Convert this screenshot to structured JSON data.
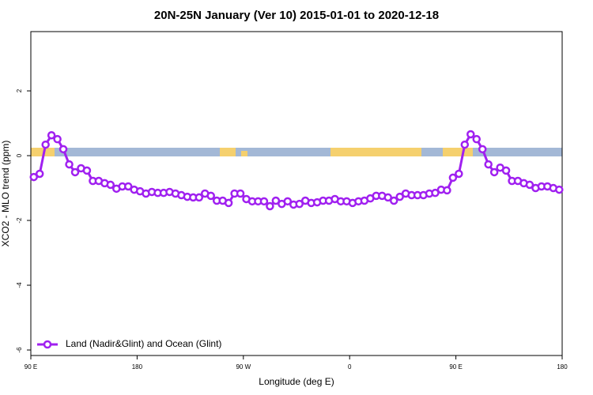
{
  "chart_data": {
    "type": "line",
    "title": "20N-25N January (Ver 10)   2015-01-01 to 2020-12-18",
    "xlabel": "Longitude (deg E)",
    "ylabel": "XCO2 - MLO trend (ppm)",
    "xlim": [
      90,
      540
    ],
    "xticks": [
      {
        "value": 90,
        "label": "90 E"
      },
      {
        "value": 180,
        "label": "180"
      },
      {
        "value": 270,
        "label": "90 W"
      },
      {
        "value": 360,
        "label": "0"
      },
      {
        "value": 450,
        "label": "90 E"
      },
      {
        "value": 540,
        "label": "180"
      }
    ],
    "ylim": [
      -6.17,
      3.83
    ],
    "yticks": [
      -6,
      -4,
      -2,
      0,
      2
    ],
    "legend": "bottom-left",
    "x": [
      92.5,
      97.5,
      102.5,
      107.5,
      112.5,
      117.5,
      122.5,
      127.5,
      132.5,
      137.5,
      142.5,
      147.5,
      152.5,
      157.5,
      162.5,
      167.5,
      172.5,
      177.5,
      182.5,
      187.5,
      192.5,
      197.5,
      202.5,
      207.5,
      212.5,
      217.5,
      222.5,
      227.5,
      232.5,
      237.5,
      242.5,
      247.5,
      252.5,
      257.5,
      262.5,
      267.5,
      272.5,
      277.5,
      282.5,
      287.5,
      292.5,
      297.5,
      302.5,
      307.5,
      312.5,
      317.5,
      322.5,
      327.5,
      332.5,
      337.5,
      342.5,
      347.5,
      352.5,
      357.5,
      362.5,
      367.5,
      372.5,
      377.5,
      382.5,
      387.5,
      392.5,
      397.5,
      402.5,
      407.5,
      412.5,
      417.5,
      422.5,
      427.5,
      432.5,
      437.5,
      442.5,
      447.5,
      452.5,
      457.5,
      462.5,
      467.5,
      472.5,
      477.5,
      482.5,
      487.5,
      492.5,
      497.5,
      502.5,
      507.5,
      512.5,
      517.5,
      522.5,
      527.5,
      532.5,
      537.5
    ],
    "series": [
      {
        "name": "Land (Nadir&Glint) and Ocean (Glint)",
        "color": "#a020f0",
        "values": [
          -0.66,
          -0.56,
          0.34,
          0.63,
          0.51,
          0.2,
          -0.27,
          -0.51,
          -0.39,
          -0.46,
          -0.78,
          -0.78,
          -0.85,
          -0.9,
          -1.02,
          -0.95,
          -0.95,
          -1.05,
          -1.1,
          -1.17,
          -1.12,
          -1.15,
          -1.15,
          -1.12,
          -1.17,
          -1.22,
          -1.27,
          -1.29,
          -1.29,
          -1.17,
          -1.24,
          -1.39,
          -1.39,
          -1.46,
          -1.17,
          -1.17,
          -1.34,
          -1.41,
          -1.41,
          -1.41,
          -1.56,
          -1.39,
          -1.49,
          -1.41,
          -1.51,
          -1.49,
          -1.39,
          -1.46,
          -1.44,
          -1.39,
          -1.39,
          -1.34,
          -1.41,
          -1.41,
          -1.46,
          -1.41,
          -1.39,
          -1.32,
          -1.24,
          -1.24,
          -1.29,
          -1.39,
          -1.27,
          -1.17,
          -1.22,
          -1.22,
          -1.22,
          -1.17,
          -1.15,
          -1.05,
          -1.07,
          -0.68,
          -0.56,
          0.34,
          0.66,
          0.51,
          0.2,
          -0.27,
          -0.51,
          -0.37,
          -0.46,
          -0.78,
          -0.78,
          -0.85,
          -0.9,
          -1.0,
          -0.95,
          -0.95,
          -1.0,
          -1.05
        ]
      }
    ]
  }
}
